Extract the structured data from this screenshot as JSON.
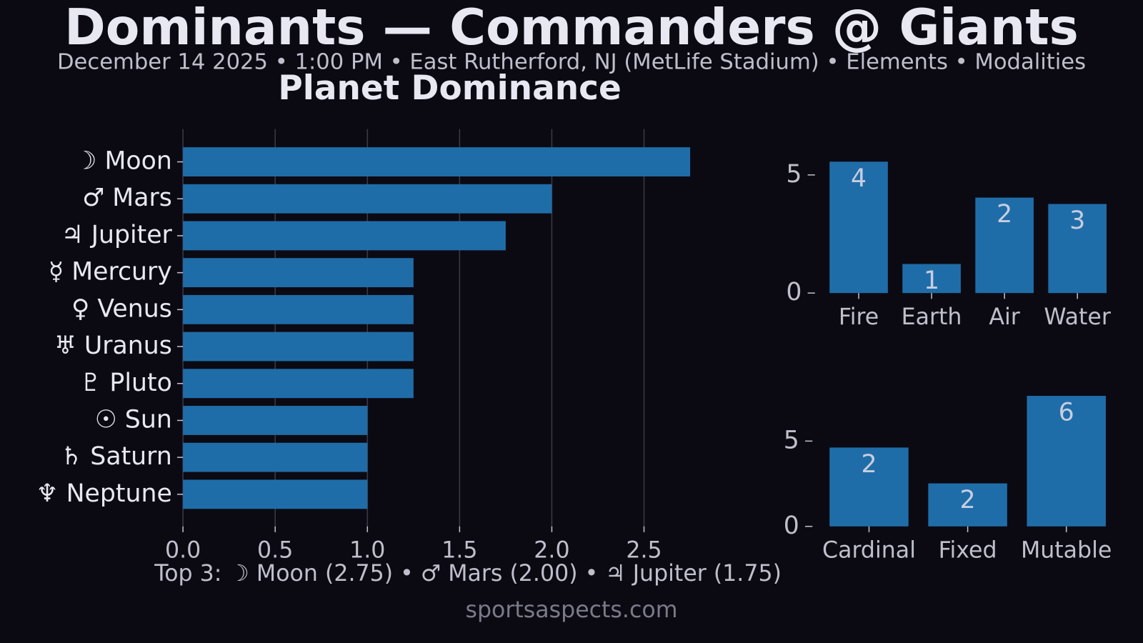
{
  "title": "Dominants — Commanders @ Giants",
  "subtitle": "December 14 2025 • 1:00 PM • East Rutherford, NJ (MetLife Stadium) • Elements • Modalities",
  "note": "Top 3:  ☽ Moon (2.75) • ♂ Mars (2.00) • ♃ Jupiter (1.75)",
  "watermark": "sportsaspects.com",
  "chart_data": [
    {
      "type": "hbar",
      "title": "Planet Dominance",
      "color": "#1f6da8",
      "grid": true,
      "categories": [
        "☽ Moon",
        "♂ Mars",
        "♃ Jupiter",
        "☿ Mercury",
        "♀ Venus",
        "♅ Uranus",
        "♇ Pluto",
        "☉ Sun",
        "♄ Saturn",
        "♆ Neptune"
      ],
      "values": [
        2.75,
        2.0,
        1.75,
        1.25,
        1.25,
        1.25,
        1.25,
        1.0,
        1.0,
        1.0
      ],
      "xlim": [
        0,
        3
      ],
      "xticks": [
        {
          "value": 0,
          "label": "0.0"
        },
        {
          "value": 0.5,
          "label": "0.5"
        },
        {
          "value": 1,
          "label": "1.0"
        },
        {
          "value": 1.5,
          "label": "1.5"
        },
        {
          "value": 2,
          "label": "2.0"
        },
        {
          "value": 2.5,
          "label": "2.5"
        }
      ]
    },
    {
      "type": "bar",
      "color": "#1f6da8",
      "grid": false,
      "categories": [
        "Fire",
        "Earth",
        "Air",
        "Water"
      ],
      "values": [
        5.56,
        1.23,
        4.04,
        3.77
      ],
      "counts": [
        4,
        1,
        2,
        3
      ],
      "ylim": [
        -0.3,
        5.85
      ],
      "yticks": [
        0,
        5
      ]
    },
    {
      "type": "bar",
      "color": "#1f6da8",
      "grid": false,
      "categories": [
        "Cardinal",
        "Fixed",
        "Mutable"
      ],
      "values": [
        4.62,
        2.52,
        7.65
      ],
      "counts": [
        2,
        2,
        6
      ],
      "ylim": [
        -0.4,
        8.0
      ],
      "yticks": [
        0,
        5
      ]
    }
  ]
}
